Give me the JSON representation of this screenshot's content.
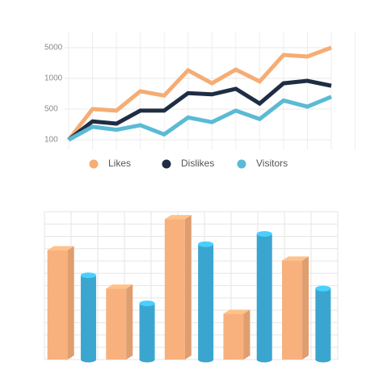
{
  "chart_data": [
    {
      "type": "line",
      "categories": [
        null,
        null,
        null,
        null,
        null,
        null,
        null,
        null,
        null,
        null,
        null,
        null
      ],
      "series": [
        {
          "name": "Likes",
          "color": "#f5ad74",
          "values": [
            100,
            500,
            480,
            790,
            720,
            2050,
            920,
            2150,
            950,
            4050,
            3850,
            5000
          ]
        },
        {
          "name": "Dislikes",
          "color": "#1f2d44",
          "values": [
            100,
            340,
            310,
            480,
            480,
            760,
            740,
            830,
            590,
            920,
            960,
            880
          ]
        },
        {
          "name": "Visitors",
          "color": "#5bbad5",
          "values": [
            100,
            270,
            230,
            290,
            170,
            390,
            330,
            480,
            370,
            640,
            540,
            700
          ]
        }
      ],
      "ylim": [
        100,
        5000
      ],
      "yticks": [
        100,
        500,
        1000,
        5000
      ],
      "grid": true,
      "legend": "bottom"
    },
    {
      "type": "bar",
      "categories": [
        null,
        null,
        null,
        null,
        null,
        null,
        null,
        null,
        null,
        null
      ],
      "values": [
        74,
        57,
        48,
        38,
        95,
        78,
        31,
        85,
        67,
        48
      ],
      "colors": [
        "#f8b07c",
        "#3aa6d0",
        "#f8b07c",
        "#3aa6d0",
        "#f8b07c",
        "#3aa6d0",
        "#f8b07c",
        "#3aa6d0",
        "#f8b07c",
        "#3aa6d0"
      ],
      "ylim": [
        0,
        100
      ],
      "grid": true
    }
  ]
}
